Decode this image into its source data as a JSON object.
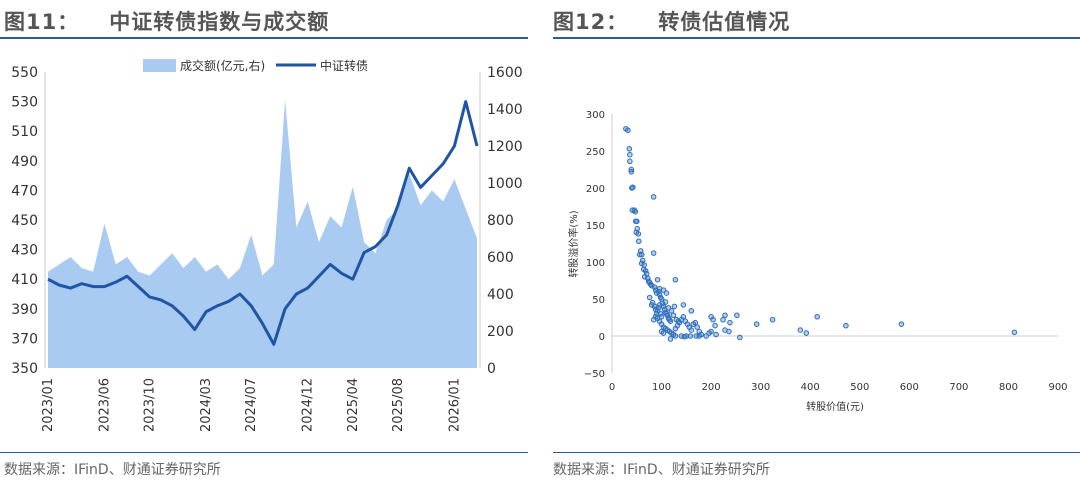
{
  "panels": [
    {
      "figure_no": "图11：",
      "title": "中证转债指数与成交额",
      "source": "数据来源：IFinD、财通证券研究所"
    },
    {
      "figure_no": "图12：",
      "title": "转债估值情况",
      "source": "数据来源：IFinD、财通证券研究所"
    }
  ],
  "chart_data": [
    {
      "type": "line+area",
      "legend": [
        "成交额(亿元,右)",
        "中证转债"
      ],
      "legend_position": "top",
      "colors": {
        "volume": "#a9cbf2",
        "index": "#1f55a5"
      },
      "x_ticks": [
        "2023/01",
        "2023/06",
        "2023/10",
        "2024/03",
        "2024/07",
        "2024/12",
        "2025/04",
        "2025/08",
        "2026/01"
      ],
      "y_left": {
        "ticks": [
          350,
          370,
          390,
          410,
          430,
          450,
          470,
          490,
          510,
          530,
          550
        ],
        "range": [
          350,
          550
        ]
      },
      "y_right": {
        "ticks": [
          0,
          200,
          400,
          600,
          800,
          1000,
          1200,
          1400,
          1600
        ],
        "range": [
          0,
          1600
        ]
      },
      "months": [
        "2023/01",
        "2023/02",
        "2023/03",
        "2023/04",
        "2023/05",
        "2023/06",
        "2023/07",
        "2023/08",
        "2023/09",
        "2023/10",
        "2023/11",
        "2023/12",
        "2024/01",
        "2024/02",
        "2024/03",
        "2024/04",
        "2024/05",
        "2024/06",
        "2024/07",
        "2024/08",
        "2024/09",
        "2024/10",
        "2024/11",
        "2024/12",
        "2025/01",
        "2025/02",
        "2025/03",
        "2025/04",
        "2025/05",
        "2025/06",
        "2025/07",
        "2025/08",
        "2025/09",
        "2025/10",
        "2025/11",
        "2025/12",
        "2026/01",
        "2026/02",
        "2026/03"
      ],
      "index": [
        410,
        406,
        404,
        407,
        405,
        405,
        408,
        412,
        405,
        398,
        396,
        392,
        385,
        376,
        388,
        392,
        395,
        400,
        392,
        380,
        366,
        390,
        400,
        404,
        412,
        420,
        414,
        410,
        428,
        432,
        440,
        460,
        485,
        472,
        480,
        488,
        500,
        530,
        500
      ],
      "volume": [
        520,
        560,
        600,
        540,
        520,
        780,
        560,
        600,
        520,
        500,
        560,
        620,
        540,
        600,
        520,
        560,
        480,
        540,
        720,
        500,
        560,
        1450,
        760,
        900,
        680,
        820,
        760,
        980,
        680,
        620,
        800,
        860,
        1050,
        880,
        960,
        900,
        1020,
        860,
        700
      ]
    },
    {
      "type": "scatter",
      "xlabel": "转股价值(元)",
      "ylabel": "转股溢价率(%)",
      "xlim": [
        0,
        900
      ],
      "ylim": [
        -50,
        300
      ],
      "x_ticks": [
        0,
        100,
        200,
        300,
        400,
        500,
        600,
        700,
        800,
        900
      ],
      "y_ticks": [
        -50,
        0,
        50,
        100,
        150,
        200,
        250,
        300
      ],
      "color": "#2e6fbf",
      "points": [
        [
          28,
          280
        ],
        [
          32,
          278
        ],
        [
          35,
          253
        ],
        [
          36,
          245
        ],
        [
          36,
          236
        ],
        [
          39,
          225
        ],
        [
          39,
          222
        ],
        [
          40,
          200
        ],
        [
          42,
          201
        ],
        [
          41,
          170
        ],
        [
          45,
          170
        ],
        [
          47,
          168
        ],
        [
          48,
          155
        ],
        [
          50,
          155
        ],
        [
          49,
          140
        ],
        [
          51,
          145
        ],
        [
          53,
          138
        ],
        [
          54,
          128
        ],
        [
          56,
          110
        ],
        [
          58,
          115
        ],
        [
          60,
          110
        ],
        [
          62,
          102
        ],
        [
          60,
          98
        ],
        [
          65,
          96
        ],
        [
          64,
          90
        ],
        [
          68,
          88
        ],
        [
          70,
          84
        ],
        [
          66,
          80
        ],
        [
          72,
          78
        ],
        [
          74,
          74
        ],
        [
          76,
          72
        ],
        [
          78,
          70
        ],
        [
          80,
          68
        ],
        [
          84,
          112
        ],
        [
          84,
          188
        ],
        [
          86,
          66
        ],
        [
          88,
          62
        ],
        [
          90,
          58
        ],
        [
          92,
          76
        ],
        [
          94,
          60
        ],
        [
          96,
          56
        ],
        [
          98,
          52
        ],
        [
          100,
          50
        ],
        [
          76,
          52
        ],
        [
          80,
          42
        ],
        [
          82,
          45
        ],
        [
          86,
          40
        ],
        [
          88,
          36
        ],
        [
          90,
          30
        ],
        [
          92,
          34
        ],
        [
          94,
          38
        ],
        [
          96,
          42
        ],
        [
          98,
          30
        ],
        [
          100,
          26
        ],
        [
          102,
          44
        ],
        [
          104,
          40
        ],
        [
          106,
          36
        ],
        [
          108,
          32
        ],
        [
          110,
          30
        ],
        [
          112,
          28
        ],
        [
          114,
          24
        ],
        [
          116,
          22
        ],
        [
          118,
          20
        ],
        [
          84,
          22
        ],
        [
          88,
          26
        ],
        [
          92,
          24
        ],
        [
          96,
          20
        ],
        [
          100,
          16
        ],
        [
          104,
          12
        ],
        [
          108,
          10
        ],
        [
          112,
          8
        ],
        [
          116,
          6
        ],
        [
          120,
          4
        ],
        [
          124,
          2
        ],
        [
          128,
          10
        ],
        [
          132,
          14
        ],
        [
          136,
          18
        ],
        [
          140,
          22
        ],
        [
          144,
          26
        ],
        [
          148,
          20
        ],
        [
          152,
          16
        ],
        [
          156,
          12
        ],
        [
          160,
          8
        ],
        [
          164,
          16
        ],
        [
          168,
          18
        ],
        [
          172,
          12
        ],
        [
          176,
          6
        ],
        [
          180,
          2
        ],
        [
          100,
          6
        ],
        [
          104,
          4
        ],
        [
          118,
          -4
        ],
        [
          128,
          0
        ],
        [
          140,
          0
        ],
        [
          146,
          -1
        ],
        [
          150,
          0
        ],
        [
          158,
          0
        ],
        [
          170,
          0
        ],
        [
          176,
          0
        ],
        [
          190,
          0
        ],
        [
          196,
          4
        ],
        [
          200,
          26
        ],
        [
          204,
          22
        ],
        [
          208,
          14
        ],
        [
          210,
          2
        ],
        [
          200,
          6
        ],
        [
          224,
          22
        ],
        [
          228,
          28
        ],
        [
          228,
          8
        ],
        [
          236,
          6
        ],
        [
          238,
          18
        ],
        [
          252,
          28
        ],
        [
          258,
          -2
        ],
        [
          292,
          16
        ],
        [
          324,
          22
        ],
        [
          380,
          8
        ],
        [
          392,
          4
        ],
        [
          414,
          26
        ],
        [
          472,
          14
        ],
        [
          584,
          16
        ],
        [
          812,
          5
        ],
        [
          128,
          76
        ],
        [
          126,
          40
        ],
        [
          144,
          42
        ],
        [
          160,
          34
        ],
        [
          110,
          58
        ],
        [
          104,
          62
        ],
        [
          96,
          64
        ],
        [
          108,
          46
        ],
        [
          114,
          38
        ],
        [
          120,
          34
        ],
        [
          124,
          28
        ],
        [
          130,
          22
        ],
        [
          134,
          20
        ]
      ]
    }
  ]
}
